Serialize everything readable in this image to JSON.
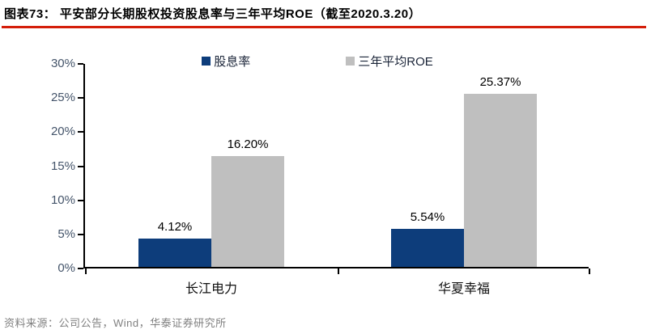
{
  "figure": {
    "title": "图表73：  平安部分长期股权投资股息率与三年平均ROE（截至2020.3.20）",
    "source": "资料来源：公司公告，Wind，华泰证券研究所",
    "accent_color": "#d41e0a"
  },
  "chart_data": {
    "type": "bar",
    "title": "平安部分长期股权投资股息率与三年平均ROE（截至2020.3.20）",
    "categories": [
      "长江电力",
      "华夏幸福"
    ],
    "series": [
      {
        "name": "股息率",
        "color": "#0d3d7b",
        "values": [
          4.12,
          5.54
        ],
        "labels": [
          "4.12%",
          "5.54%"
        ]
      },
      {
        "name": "三年平均ROE",
        "color": "#bfbfbf",
        "values": [
          16.2,
          25.37
        ],
        "labels": [
          "16.20%",
          "25.37%"
        ]
      }
    ],
    "xlabel": "",
    "ylabel": "",
    "ylim": [
      0,
      30
    ],
    "ytick_step": 5,
    "ytick_labels": [
      "0%",
      "5%",
      "10%",
      "15%",
      "20%",
      "25%",
      "30%"
    ],
    "grid": false,
    "legend_position": "top",
    "data_labels": true
  }
}
